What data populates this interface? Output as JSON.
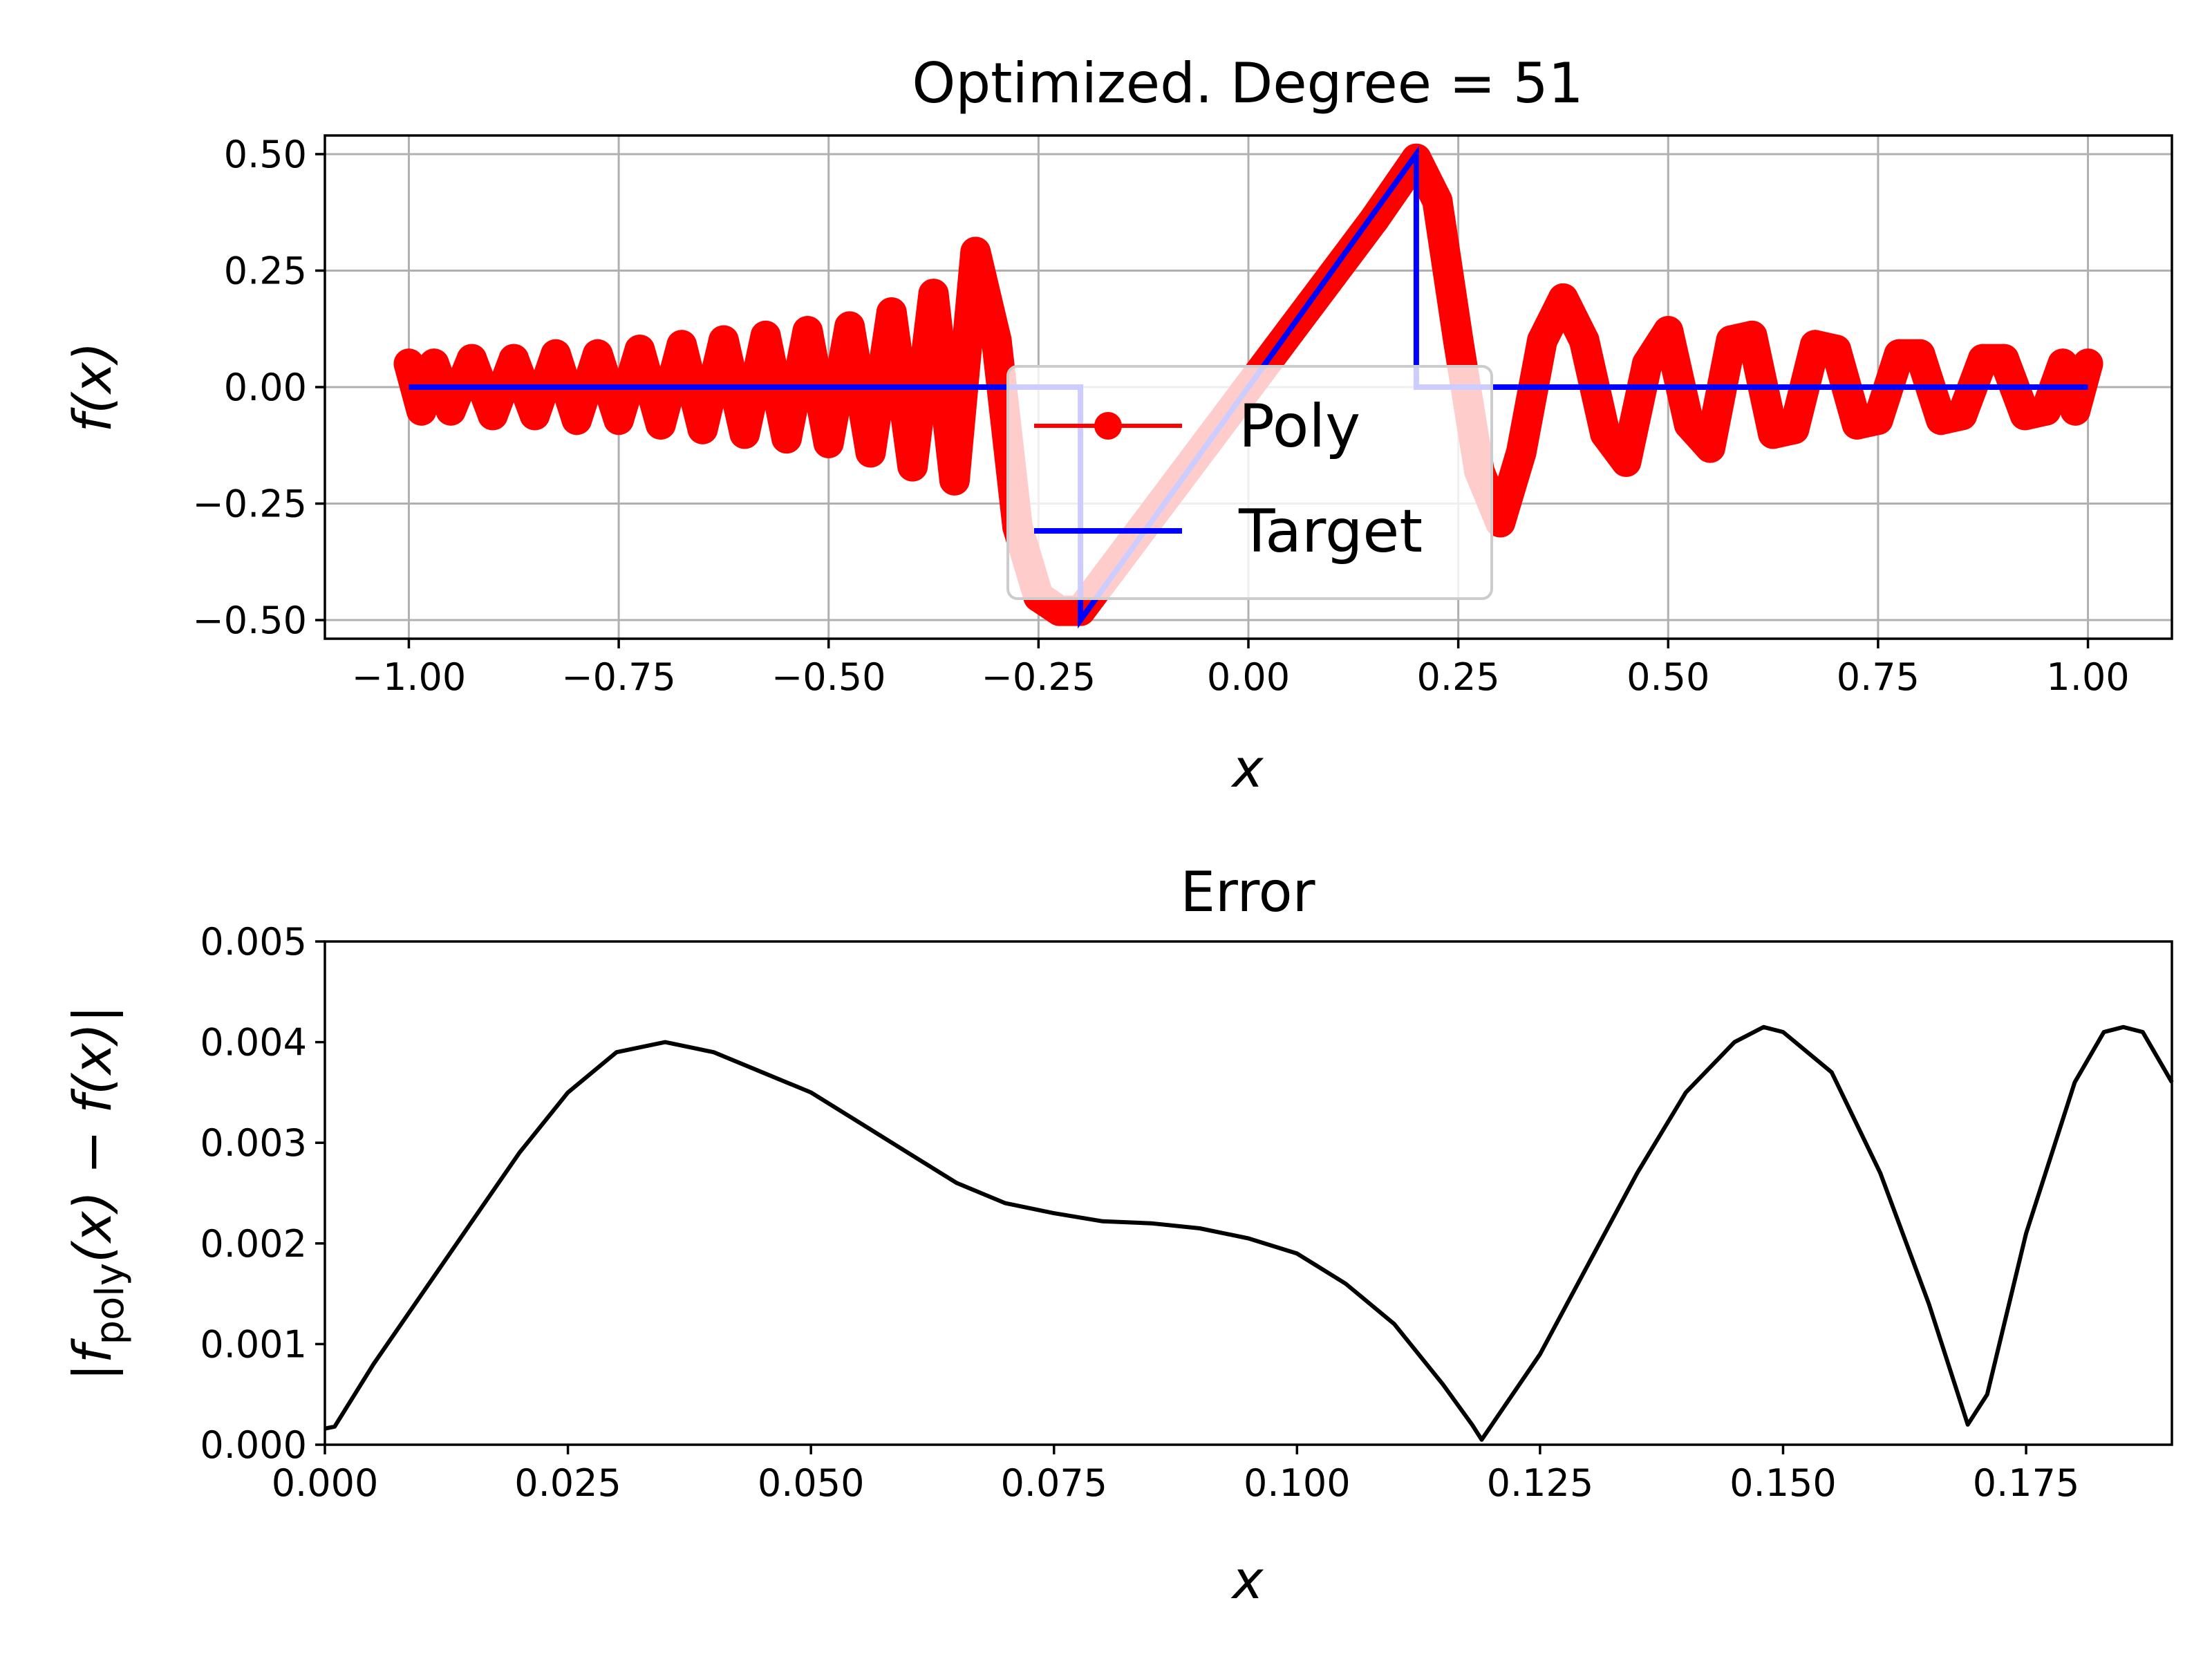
{
  "chart_data": [
    {
      "type": "line",
      "title": "Optimized. Degree = 51",
      "xlabel": "x",
      "ylabel": "f(x)",
      "xlim": [
        -1.1,
        1.1
      ],
      "ylim": [
        -0.54,
        0.54
      ],
      "xticks": [
        "−1.00",
        "−0.75",
        "−0.50",
        "−0.25",
        "0.00",
        "0.25",
        "0.50",
        "0.75",
        "1.00"
      ],
      "xtick_values": [
        -1.0,
        -0.75,
        -0.5,
        -0.25,
        0.0,
        0.25,
        0.5,
        0.75,
        1.0
      ],
      "yticks": [
        "−0.50",
        "−0.25",
        "0.00",
        "0.25",
        "0.50"
      ],
      "ytick_values": [
        -0.5,
        -0.25,
        0.0,
        0.25,
        0.5
      ],
      "grid": true,
      "legend_position": "center",
      "series": [
        {
          "name": "Poly",
          "color": "#ff0000",
          "marker": "circle",
          "x": [
            -1.0,
            -0.985,
            -0.97,
            -0.95,
            -0.925,
            -0.9,
            -0.875,
            -0.85,
            -0.825,
            -0.8,
            -0.775,
            -0.75,
            -0.725,
            -0.7,
            -0.675,
            -0.65,
            -0.625,
            -0.6,
            -0.575,
            -0.55,
            -0.525,
            -0.5,
            -0.475,
            -0.45,
            -0.425,
            -0.4,
            -0.375,
            -0.35,
            -0.325,
            -0.3,
            -0.275,
            -0.25,
            -0.225,
            -0.2,
            -0.15,
            -0.1,
            -0.05,
            0.0,
            0.05,
            0.1,
            0.15,
            0.2,
            0.225,
            0.25,
            0.275,
            0.3,
            0.325,
            0.35,
            0.375,
            0.4,
            0.425,
            0.45,
            0.475,
            0.5,
            0.525,
            0.55,
            0.575,
            0.6,
            0.625,
            0.65,
            0.675,
            0.7,
            0.725,
            0.75,
            0.775,
            0.8,
            0.825,
            0.85,
            0.875,
            0.9,
            0.925,
            0.95,
            0.97,
            0.985,
            1.0
          ],
          "y": [
            0.05,
            -0.05,
            0.05,
            -0.05,
            0.06,
            -0.06,
            0.06,
            -0.06,
            0.07,
            -0.07,
            0.07,
            -0.07,
            0.08,
            -0.08,
            0.09,
            -0.09,
            0.1,
            -0.1,
            0.11,
            -0.11,
            0.12,
            -0.12,
            0.13,
            -0.14,
            0.16,
            -0.17,
            0.2,
            -0.2,
            0.29,
            0.1,
            -0.3,
            -0.45,
            -0.48,
            -0.48,
            -0.36,
            -0.24,
            -0.12,
            0.0,
            0.12,
            0.24,
            0.36,
            0.49,
            0.4,
            0.1,
            -0.18,
            -0.29,
            -0.14,
            0.1,
            0.19,
            0.1,
            -0.1,
            -0.16,
            0.05,
            0.12,
            -0.08,
            -0.13,
            0.1,
            0.11,
            -0.1,
            -0.09,
            0.09,
            0.08,
            -0.08,
            -0.07,
            0.07,
            0.07,
            -0.07,
            -0.06,
            0.06,
            0.06,
            -0.06,
            -0.05,
            0.05,
            -0.05,
            0.05
          ]
        },
        {
          "name": "Target",
          "color": "#0000ff",
          "x": [
            -1.0,
            -0.2,
            -0.2,
            0.2,
            0.2,
            1.0
          ],
          "y": [
            0.0,
            0.0,
            -0.5,
            0.5,
            0.0,
            0.0
          ]
        }
      ]
    },
    {
      "type": "line",
      "title": "Error",
      "xlabel": "x",
      "ylabel": "|f_poly(x) − f(x)|",
      "ylabel_parts": {
        "open": "|",
        "f": "f",
        "sub": "poly",
        "rest": "(x) − f(x)|"
      },
      "xlim": [
        0.0,
        0.19
      ],
      "ylim": [
        0.0,
        0.005
      ],
      "xticks": [
        "0.000",
        "0.025",
        "0.050",
        "0.075",
        "0.100",
        "0.125",
        "0.150",
        "0.175"
      ],
      "xtick_values": [
        0.0,
        0.025,
        0.05,
        0.075,
        0.1,
        0.125,
        0.15,
        0.175
      ],
      "yticks": [
        "0.000",
        "0.001",
        "0.002",
        "0.003",
        "0.004",
        "0.005"
      ],
      "ytick_values": [
        0.0,
        0.001,
        0.002,
        0.003,
        0.004,
        0.005
      ],
      "grid": false,
      "series": [
        {
          "color": "#000000",
          "x": [
            0.0,
            0.001,
            0.005,
            0.01,
            0.015,
            0.02,
            0.025,
            0.03,
            0.035,
            0.04,
            0.045,
            0.05,
            0.055,
            0.06,
            0.065,
            0.07,
            0.075,
            0.08,
            0.085,
            0.09,
            0.095,
            0.1,
            0.105,
            0.11,
            0.115,
            0.118,
            0.119,
            0.125,
            0.13,
            0.135,
            0.14,
            0.145,
            0.148,
            0.15,
            0.155,
            0.16,
            0.165,
            0.169,
            0.171,
            0.175,
            0.18,
            0.183,
            0.185,
            0.187,
            0.19
          ],
          "y": [
            0.00016,
            0.00018,
            0.0008,
            0.0015,
            0.0022,
            0.0029,
            0.0035,
            0.0039,
            0.004,
            0.0039,
            0.0037,
            0.0035,
            0.0032,
            0.0029,
            0.0026,
            0.0024,
            0.0023,
            0.00222,
            0.0022,
            0.00215,
            0.00205,
            0.0019,
            0.0016,
            0.0012,
            0.0006,
            0.0002,
            5e-05,
            0.0009,
            0.0018,
            0.0027,
            0.0035,
            0.004,
            0.00415,
            0.0041,
            0.0037,
            0.0027,
            0.0014,
            0.0002,
            0.0005,
            0.0021,
            0.0036,
            0.0041,
            0.00415,
            0.0041,
            0.0036
          ]
        }
      ]
    }
  ]
}
